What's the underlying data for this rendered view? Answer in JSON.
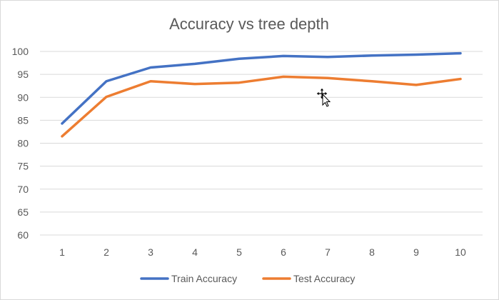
{
  "chart_data": {
    "type": "line",
    "title": "Accuracy vs tree depth",
    "xlabel": "",
    "ylabel": "",
    "categories": [
      "1",
      "2",
      "3",
      "4",
      "5",
      "6",
      "7",
      "8",
      "9",
      "10"
    ],
    "ylim": [
      60,
      100
    ],
    "yticks": [
      "60",
      "65",
      "70",
      "75",
      "80",
      "85",
      "90",
      "95",
      "100"
    ],
    "grid": true,
    "legend_position": "bottom",
    "series": [
      {
        "name": "Train Accuracy",
        "color": "#4472c4",
        "values": [
          84.3,
          93.5,
          96.5,
          97.3,
          98.4,
          99.0,
          98.8,
          99.1,
          99.3,
          99.6
        ]
      },
      {
        "name": "Test Accuracy",
        "color": "#ed7d31",
        "values": [
          81.5,
          90.1,
          93.5,
          92.9,
          93.2,
          94.5,
          94.2,
          93.5,
          92.7,
          94.0
        ]
      }
    ],
    "colors": {
      "gridline": "#d9d9d9",
      "text": "#595959",
      "border": "#d9d9d9"
    }
  },
  "cursor": {
    "icon": "move-cursor-icon"
  }
}
